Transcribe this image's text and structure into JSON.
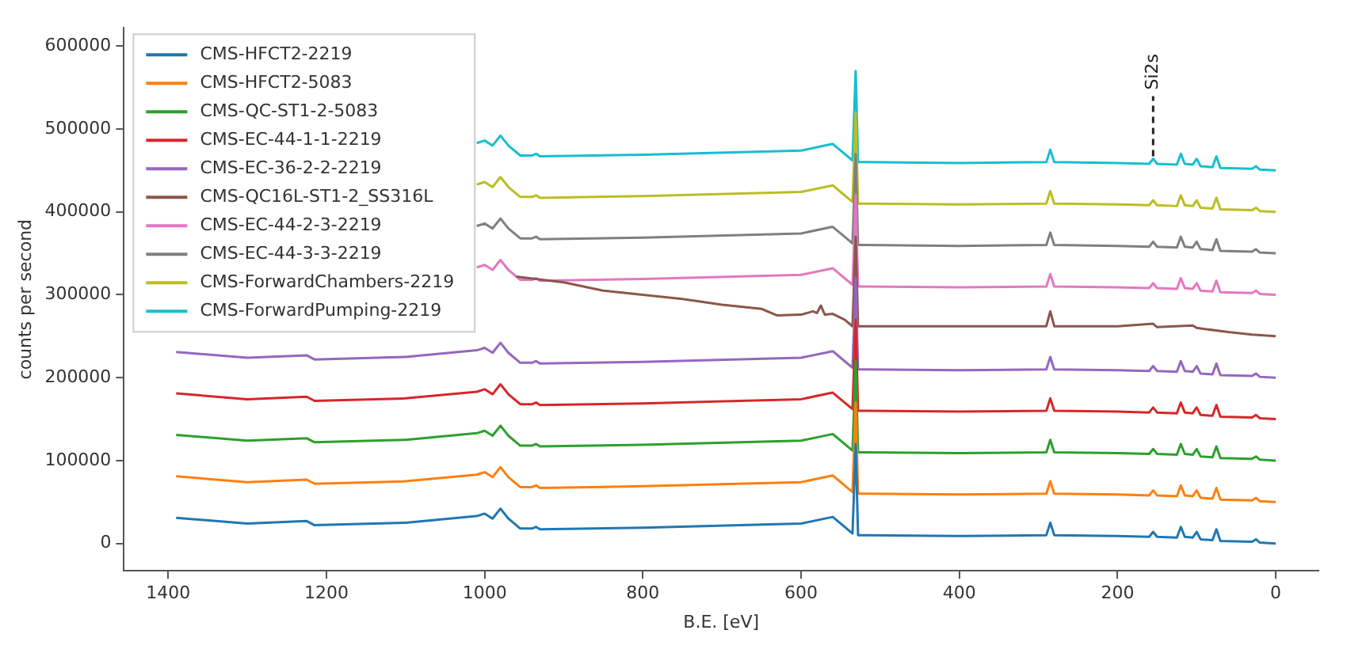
{
  "chart_data": {
    "type": "line",
    "xlabel": "B.E. [eV]",
    "ylabel": "counts per second",
    "x": [
      1390,
      1300,
      1225,
      1215,
      1100,
      1010,
      1000,
      990,
      980,
      970,
      955,
      940,
      935,
      930,
      800,
      600,
      560,
      545,
      535,
      531,
      528,
      520,
      400,
      290,
      285,
      280,
      200,
      160,
      155,
      150,
      125,
      120,
      115,
      105,
      100,
      95,
      80,
      75,
      70,
      30,
      25,
      20,
      0
    ],
    "series": [
      {
        "name": "CMS-HFCT2-2219",
        "color": "#1f77b4",
        "values": [
          31000,
          24000,
          27000,
          22000,
          25000,
          33000,
          36000,
          30000,
          42000,
          30000,
          18000,
          18000,
          20000,
          17000,
          19000,
          24000,
          32000,
          20000,
          12000,
          120000,
          10000,
          10000,
          9000,
          10000,
          25000,
          10000,
          9000,
          8000,
          14000,
          8000,
          7000,
          20000,
          8000,
          7000,
          14000,
          5000,
          4000,
          17000,
          3000,
          2000,
          5000,
          1000,
          0
        ]
      },
      {
        "name": "CMS-HFCT2-5083",
        "color": "#ff7f0e",
        "values": [
          81000,
          74000,
          77000,
          72000,
          75000,
          83000,
          86000,
          80000,
          92000,
          80000,
          68000,
          68000,
          70000,
          67000,
          69000,
          74000,
          82000,
          70000,
          62000,
          170000,
          60000,
          60000,
          59000,
          60000,
          75000,
          60000,
          59000,
          58000,
          64000,
          58000,
          57000,
          70000,
          58000,
          57000,
          64000,
          55000,
          54000,
          67000,
          53000,
          52000,
          55000,
          51000,
          50000
        ]
      },
      {
        "name": "CMS-QC-ST1-2-5083",
        "color": "#2ca02c",
        "values": [
          131000,
          124000,
          127000,
          122000,
          125000,
          133000,
          136000,
          130000,
          142000,
          130000,
          118000,
          118000,
          120000,
          117000,
          119000,
          124000,
          132000,
          120000,
          112000,
          220000,
          110000,
          110000,
          109000,
          110000,
          125000,
          110000,
          109000,
          108000,
          114000,
          108000,
          107000,
          120000,
          108000,
          107000,
          114000,
          105000,
          104000,
          117000,
          103000,
          102000,
          105000,
          101000,
          100000
        ]
      },
      {
        "name": "CMS-EC-44-1-1-2219",
        "color": "#d62728",
        "values": [
          181000,
          174000,
          177000,
          172000,
          175000,
          183000,
          186000,
          180000,
          192000,
          180000,
          168000,
          168000,
          170000,
          167000,
          169000,
          174000,
          182000,
          170000,
          162000,
          270000,
          160000,
          160000,
          159000,
          160000,
          175000,
          160000,
          159000,
          158000,
          164000,
          158000,
          157000,
          170000,
          158000,
          157000,
          164000,
          155000,
          154000,
          167000,
          153000,
          152000,
          155000,
          151000,
          150000
        ]
      },
      {
        "name": "CMS-EC-36-2-2-2219",
        "color": "#9467bd",
        "values": [
          231000,
          224000,
          227000,
          222000,
          225000,
          233000,
          236000,
          230000,
          242000,
          230000,
          218000,
          218000,
          220000,
          217000,
          219000,
          224000,
          232000,
          220000,
          212000,
          320000,
          210000,
          210000,
          209000,
          210000,
          225000,
          210000,
          209000,
          208000,
          214000,
          208000,
          207000,
          220000,
          208000,
          207000,
          214000,
          205000,
          204000,
          217000,
          203000,
          202000,
          205000,
          201000,
          200000
        ]
      },
      {
        "name": "CMS-QC16L-ST1-2_SS316L",
        "color": "#8c564b",
        "x": [
          960,
          900,
          850,
          800,
          750,
          700,
          650,
          630,
          600,
          585,
          580,
          575,
          570,
          560,
          545,
          535,
          531,
          528,
          400,
          290,
          285,
          280,
          200,
          155,
          150,
          105,
          100,
          60,
          30,
          0
        ],
        "values": [
          322000,
          315000,
          305000,
          300000,
          295000,
          288000,
          283000,
          275000,
          276000,
          280000,
          278000,
          287000,
          276000,
          277000,
          270000,
          262000,
          370000,
          262000,
          262000,
          262000,
          280000,
          262000,
          262000,
          265000,
          261000,
          263000,
          260000,
          255000,
          252000,
          250000
        ]
      },
      {
        "name": "CMS-EC-44-2-3-2219",
        "color": "#e377c2",
        "values": [
          null,
          null,
          null,
          null,
          null,
          333000,
          336000,
          330000,
          342000,
          330000,
          318000,
          318000,
          320000,
          317000,
          319000,
          324000,
          332000,
          320000,
          312000,
          420000,
          310000,
          310000,
          309000,
          310000,
          325000,
          310000,
          309000,
          308000,
          314000,
          308000,
          307000,
          320000,
          308000,
          307000,
          314000,
          305000,
          304000,
          317000,
          303000,
          302000,
          305000,
          301000,
          300000
        ]
      },
      {
        "name": "CMS-EC-44-3-3-2219",
        "color": "#7f7f7f",
        "values": [
          null,
          null,
          null,
          null,
          null,
          383000,
          386000,
          380000,
          392000,
          380000,
          368000,
          368000,
          370000,
          367000,
          369000,
          374000,
          382000,
          370000,
          362000,
          470000,
          360000,
          360000,
          359000,
          360000,
          375000,
          360000,
          359000,
          358000,
          364000,
          358000,
          357000,
          370000,
          358000,
          357000,
          364000,
          355000,
          354000,
          367000,
          353000,
          352000,
          355000,
          351000,
          350000
        ]
      },
      {
        "name": "CMS-ForwardChambers-2219",
        "color": "#bcbd22",
        "values": [
          null,
          null,
          null,
          null,
          null,
          433000,
          436000,
          430000,
          442000,
          430000,
          418000,
          418000,
          420000,
          417000,
          419000,
          424000,
          432000,
          420000,
          412000,
          520000,
          410000,
          410000,
          409000,
          410000,
          425000,
          410000,
          409000,
          408000,
          414000,
          408000,
          407000,
          420000,
          408000,
          407000,
          414000,
          405000,
          404000,
          417000,
          403000,
          402000,
          405000,
          401000,
          400000
        ]
      },
      {
        "name": "CMS-ForwardPumping-2219",
        "color": "#17becf",
        "values": [
          null,
          null,
          null,
          null,
          null,
          483000,
          486000,
          480000,
          492000,
          480000,
          468000,
          468000,
          470000,
          467000,
          469000,
          474000,
          482000,
          470000,
          462000,
          570000,
          460000,
          460000,
          459000,
          460000,
          475000,
          460000,
          459000,
          458000,
          464000,
          458000,
          457000,
          470000,
          458000,
          457000,
          464000,
          455000,
          454000,
          467000,
          453000,
          452000,
          455000,
          451000,
          450000
        ]
      }
    ],
    "xlim": [
      1456,
      -54
    ],
    "xticks": [
      1400,
      1200,
      1000,
      800,
      600,
      400,
      200,
      0
    ],
    "ylim": [
      -33000,
      622000
    ],
    "yticks": [
      0,
      100000,
      200000,
      300000,
      400000,
      500000,
      600000
    ],
    "annotations": [
      {
        "text": "Si2s",
        "x": 155,
        "y": 467000
      }
    ],
    "legend": "top left",
    "grid": false,
    "marker": "none",
    "line_style": "solid"
  }
}
